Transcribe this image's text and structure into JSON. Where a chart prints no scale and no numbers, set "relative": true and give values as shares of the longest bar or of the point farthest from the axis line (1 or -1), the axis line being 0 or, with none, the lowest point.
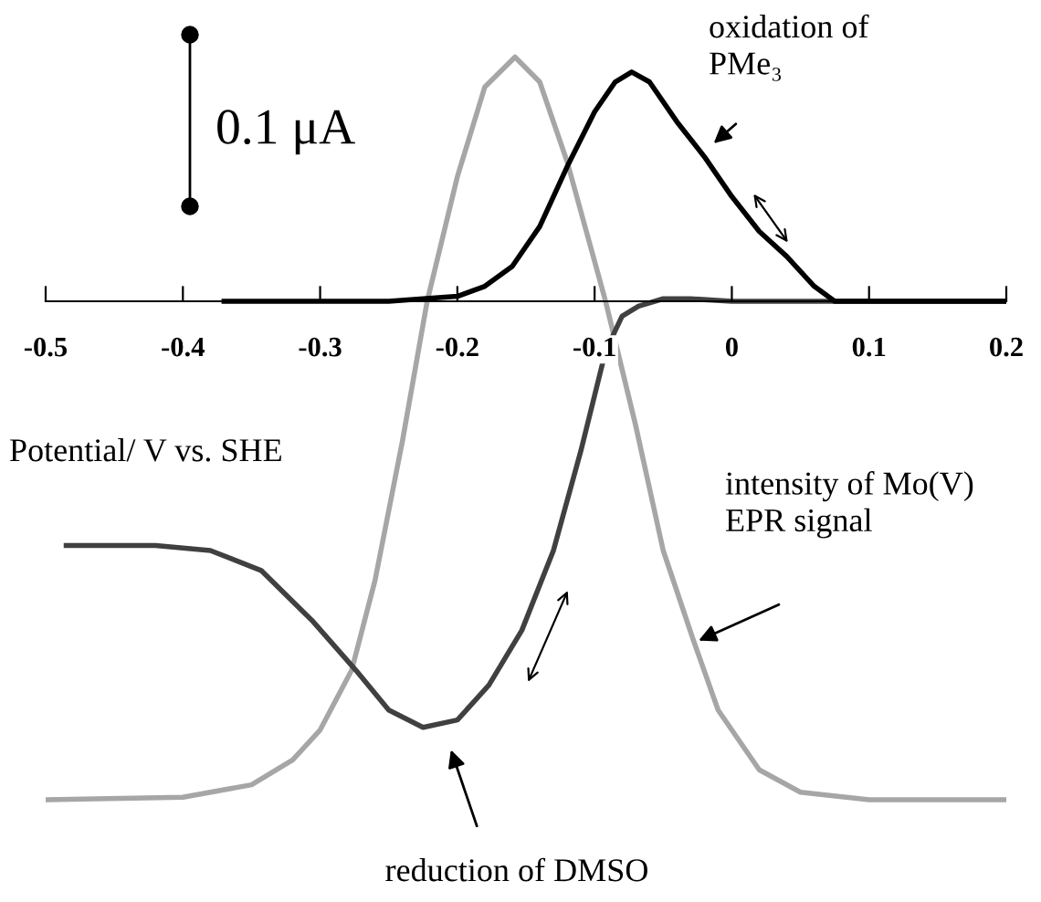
{
  "chart_data": {
    "type": "line",
    "relative": true,
    "xlabel": "Potential/ V vs. SHE",
    "xlim": [
      -0.5,
      0.2
    ],
    "xticks": [
      -0.5,
      -0.4,
      -0.3,
      -0.2,
      -0.1,
      0,
      0.1,
      0.2
    ],
    "grid": false,
    "legend": false,
    "marker": "none",
    "line_style": "solid",
    "tick_labels": "x",
    "series": [
      {
        "color": "#a6a6a6",
        "x": [
          -0.5,
          -0.4,
          -0.35,
          -0.32,
          -0.3,
          -0.277,
          -0.26,
          -0.24,
          -0.222,
          -0.2,
          -0.18,
          -0.158,
          -0.14,
          -0.12,
          -0.1,
          -0.092,
          -0.07,
          -0.05,
          -0.028,
          -0.01,
          0.02,
          0.05,
          0.1,
          0.2
        ],
        "values": [
          -1,
          -0.995,
          -0.97,
          -0.92,
          -0.86,
          -0.74,
          -0.56,
          -0.28,
          0,
          0.25,
          0.43,
          0.49,
          0.44,
          0.28,
          0.08,
          0,
          -0.25,
          -0.5,
          -0.68,
          -0.82,
          -0.94,
          -0.985,
          -1,
          -1
        ]
      },
      {
        "color": "#404040",
        "x": [
          -0.485,
          -0.42,
          -0.38,
          -0.343,
          -0.306,
          -0.274,
          -0.25,
          -0.225,
          -0.2,
          -0.177,
          -0.153,
          -0.13,
          -0.11,
          -0.092,
          -0.08,
          -0.068,
          -0.05,
          -0.03,
          0,
          0.2
        ],
        "values": [
          -0.49,
          -0.49,
          -0.5,
          -0.54,
          -0.64,
          -0.74,
          -0.82,
          -0.855,
          -0.84,
          -0.77,
          -0.66,
          -0.5,
          -0.3,
          -0.1,
          -0.03,
          -0.01,
          0.005,
          0.005,
          0,
          0
        ]
      },
      {
        "color": "#000000",
        "x": [
          -0.37,
          -0.25,
          -0.2,
          -0.18,
          -0.16,
          -0.14,
          -0.12,
          -0.1,
          -0.085,
          -0.073,
          -0.06,
          -0.04,
          -0.02,
          0,
          0.02,
          0.04,
          0.06,
          0.075,
          0.2
        ],
        "values": [
          0,
          0,
          0.01,
          0.03,
          0.07,
          0.15,
          0.27,
          0.38,
          0.44,
          0.46,
          0.44,
          0.36,
          0.29,
          0.21,
          0.14,
          0.09,
          0.03,
          0,
          0
        ]
      }
    ],
    "annotations": [
      "0.1 μA",
      {
        "text": "oxidation of\nPMe₃",
        "x": -0.016,
        "y": 0.31
      },
      "intensity of Mo(V)\nEPR signal",
      "reduction of DMSO"
    ]
  }
}
